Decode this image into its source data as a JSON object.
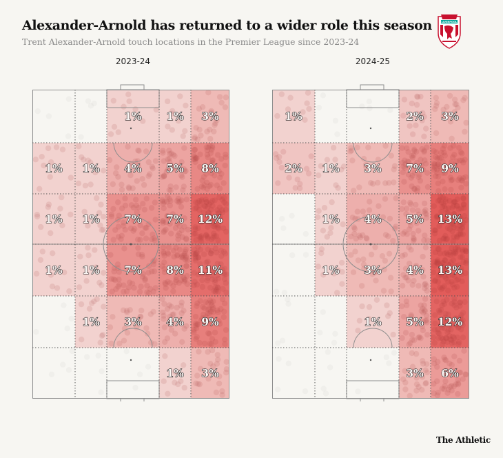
{
  "title": "Alexander-Arnold has returned to a wider role this season",
  "subtitle": "Trent Alexander-Arnold touch locations in the Premier League since 2023-24",
  "logo_text": "LIVERPOOL",
  "footer": "The Athletic",
  "colors": {
    "background": "#f7f6f2",
    "heat_max": "#e25c5a",
    "line": "#8d8d8d"
  },
  "chart_data": [
    {
      "type": "heatmap",
      "title": "2023-24",
      "unit": "% of touches",
      "grid": "6 rows x 5 columns of pitch zones (rows top to bottom, columns left to right)",
      "values": [
        [
          null,
          null,
          1,
          1,
          3
        ],
        [
          1,
          1,
          4,
          5,
          8
        ],
        [
          1,
          1,
          7,
          7,
          12
        ],
        [
          1,
          1,
          7,
          8,
          11
        ],
        [
          null,
          1,
          3,
          4,
          9
        ],
        [
          null,
          null,
          null,
          1,
          3
        ]
      ]
    },
    {
      "type": "heatmap",
      "title": "2024-25",
      "unit": "% of touches",
      "grid": "6 rows x 5 columns of pitch zones (rows top to bottom, columns left to right)",
      "values": [
        [
          1,
          null,
          null,
          2,
          3
        ],
        [
          2,
          1,
          3,
          7,
          9
        ],
        [
          null,
          1,
          4,
          5,
          13
        ],
        [
          null,
          1,
          3,
          4,
          13
        ],
        [
          null,
          null,
          1,
          5,
          12
        ],
        [
          null,
          null,
          null,
          3,
          6
        ]
      ]
    }
  ]
}
